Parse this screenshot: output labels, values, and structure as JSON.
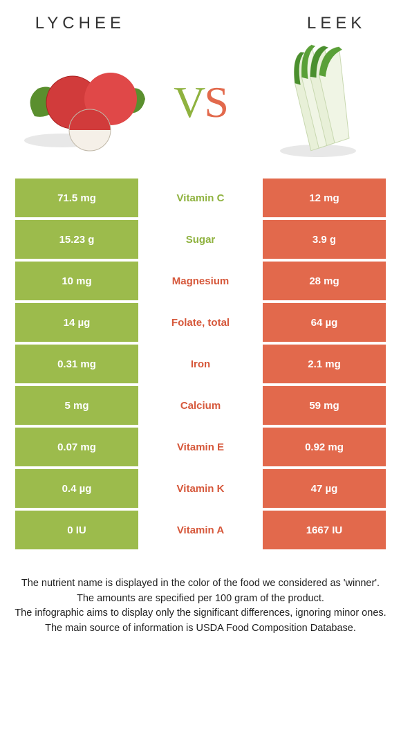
{
  "colors": {
    "left": "#9cbb4c",
    "right": "#e2694c",
    "left_dark": "#8fb23f",
    "right_dark": "#d6583b"
  },
  "header": {
    "left_title": "Lychee",
    "right_title": "Leek"
  },
  "vs": {
    "v": "V",
    "s": "S"
  },
  "rows": [
    {
      "left": "71.5 mg",
      "label": "Vitamin C",
      "right": "12 mg",
      "winner": "left"
    },
    {
      "left": "15.23 g",
      "label": "Sugar",
      "right": "3.9 g",
      "winner": "left"
    },
    {
      "left": "10 mg",
      "label": "Magnesium",
      "right": "28 mg",
      "winner": "right"
    },
    {
      "left": "14 µg",
      "label": "Folate, total",
      "right": "64 µg",
      "winner": "right"
    },
    {
      "left": "0.31 mg",
      "label": "Iron",
      "right": "2.1 mg",
      "winner": "right"
    },
    {
      "left": "5 mg",
      "label": "Calcium",
      "right": "59 mg",
      "winner": "right"
    },
    {
      "left": "0.07 mg",
      "label": "Vitamin E",
      "right": "0.92 mg",
      "winner": "right"
    },
    {
      "left": "0.4 µg",
      "label": "Vitamin K",
      "right": "47 µg",
      "winner": "right"
    },
    {
      "left": "0 IU",
      "label": "Vitamin A",
      "right": "1667 IU",
      "winner": "right"
    }
  ],
  "footer": {
    "l1": "The nutrient name is displayed in the color of the food we considered as 'winner'.",
    "l2": "The amounts are specified per 100 gram of the product.",
    "l3": "The infographic aims to display only the significant differences, ignoring minor ones.",
    "l4": "The main source of information is USDA Food Composition Database."
  }
}
